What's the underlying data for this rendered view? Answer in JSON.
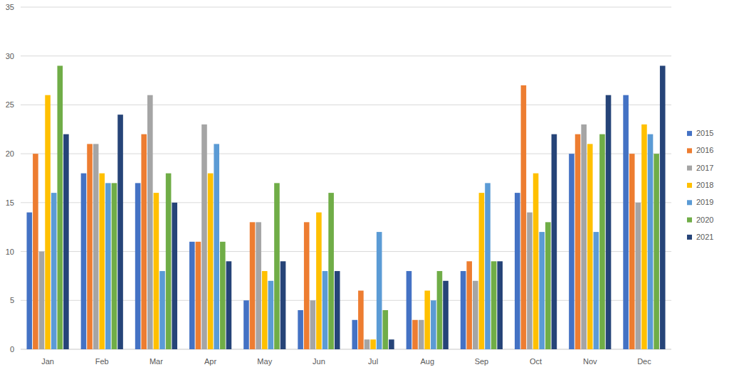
{
  "chart_data": {
    "type": "bar",
    "categories": [
      "Jan",
      "Feb",
      "Mar",
      "Apr",
      "May",
      "Jun",
      "Jul",
      "Aug",
      "Sep",
      "Oct",
      "Nov",
      "Dec"
    ],
    "series": [
      {
        "name": "2015",
        "color": "#4472c4",
        "values": [
          14,
          18,
          17,
          11,
          5,
          4,
          3,
          8,
          8,
          16,
          20,
          26
        ]
      },
      {
        "name": "2016",
        "color": "#ed7d31",
        "values": [
          20,
          21,
          22,
          11,
          13,
          13,
          6,
          3,
          9,
          27,
          22,
          20
        ]
      },
      {
        "name": "2017",
        "color": "#a5a5a5",
        "values": [
          10,
          21,
          26,
          23,
          13,
          5,
          1,
          3,
          7,
          14,
          23,
          15
        ]
      },
      {
        "name": "2018",
        "color": "#ffc000",
        "values": [
          26,
          18,
          16,
          18,
          8,
          14,
          1,
          6,
          16,
          18,
          21,
          23
        ]
      },
      {
        "name": "2019",
        "color": "#5b9bd5",
        "values": [
          16,
          17,
          8,
          21,
          7,
          8,
          12,
          5,
          17,
          12,
          12,
          22
        ]
      },
      {
        "name": "2020",
        "color": "#70ad47",
        "values": [
          29,
          17,
          18,
          11,
          17,
          16,
          4,
          8,
          9,
          13,
          22,
          20
        ]
      },
      {
        "name": "2021",
        "color": "#264478",
        "values": [
          22,
          24,
          15,
          9,
          9,
          8,
          1,
          7,
          9,
          22,
          26,
          29
        ]
      }
    ],
    "ylim": [
      0,
      35
    ],
    "yticks": [
      0,
      5,
      10,
      15,
      20,
      25,
      30,
      35
    ],
    "grid": true,
    "legend": "right"
  }
}
